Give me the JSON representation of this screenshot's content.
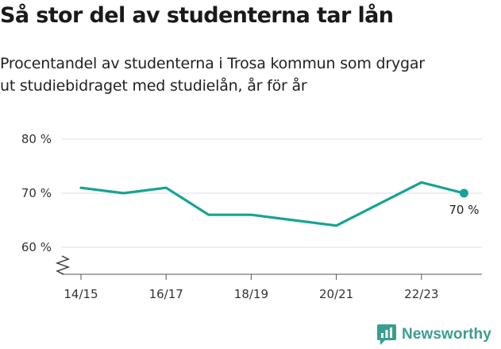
{
  "header": {
    "title": "Så stor del av studenterna tar lån",
    "subtitle_line1": "Procentandel av studenterna i Trosa kommun som drygar",
    "subtitle_line2": "ut studiebidraget med studielån, år för år"
  },
  "brand": {
    "name": "Newsworthy",
    "icon": "newsworthy-logo-icon",
    "color": "#3a9e8f"
  },
  "chart_data": {
    "type": "line",
    "title": "Så stor del av studenterna tar lån",
    "x": [
      "14/15",
      "15/16",
      "16/17",
      "17/18",
      "18/19",
      "19/20",
      "20/21",
      "21/22",
      "22/23",
      "23/24"
    ],
    "x_tick_labels": [
      "14/15",
      "16/17",
      "18/19",
      "20/21",
      "22/23"
    ],
    "series": [
      {
        "values": [
          71,
          70,
          71,
          66,
          66,
          65,
          64,
          68,
          72,
          70
        ],
        "color": "#17a394"
      }
    ],
    "ylim": [
      55,
      80
    ],
    "y_ticks": [
      60,
      70,
      80
    ],
    "y_tick_labels": [
      "60 %",
      "70 %",
      "80 %"
    ],
    "y_axis_break": true,
    "grid": true,
    "last_point_label": "70 %",
    "gridline_color": "#dddddd",
    "axis_color": "#555555"
  }
}
